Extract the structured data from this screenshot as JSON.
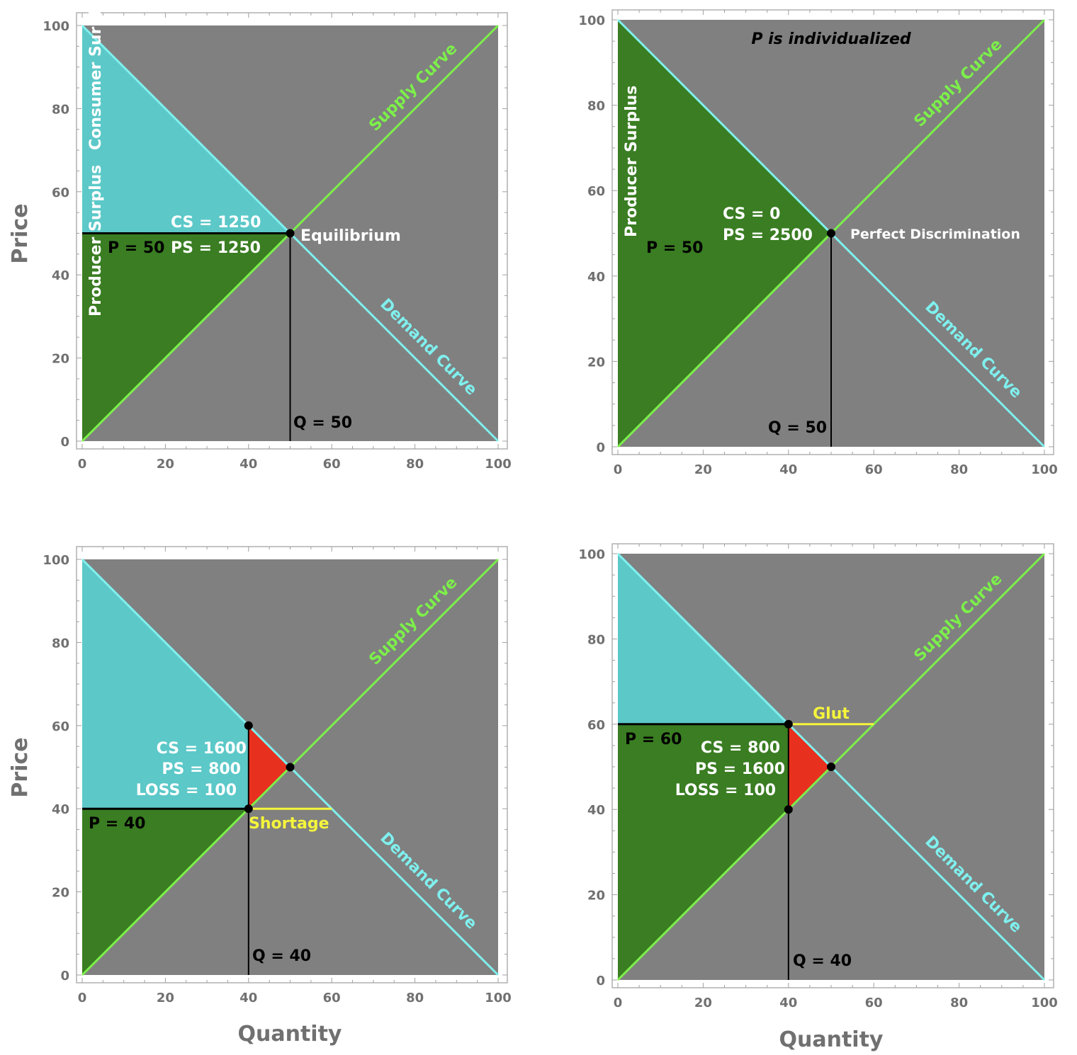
{
  "colors": {
    "background": "#808080",
    "demand": "#7ff0ee",
    "supply": "#7cf04a",
    "consumer_surplus": "#5cc8c8",
    "producer_surplus": "#3a7d22",
    "loss": "#e8301f",
    "gap": "#f5f53c",
    "text_black": "#000000",
    "text_white": "#ffffff",
    "axis_text": "#707070"
  },
  "axis_labels": {
    "y": "Price",
    "x": "Quantity"
  },
  "chart_data": [
    {
      "type": "area",
      "title": "",
      "xlim": [
        0,
        100
      ],
      "ylim": [
        0,
        100
      ],
      "xticks": [
        "0",
        "20",
        "40",
        "60",
        "80",
        "100"
      ],
      "yticks": [
        "0",
        "20",
        "40",
        "60",
        "80",
        "100"
      ],
      "demand": {
        "label": "Demand Curve",
        "points": [
          [
            0,
            100
          ],
          [
            100,
            0
          ]
        ]
      },
      "supply": {
        "label": "Supply Curve",
        "points": [
          [
            0,
            0
          ],
          [
            100,
            100
          ]
        ]
      },
      "regions": [
        {
          "kind": "consumer_surplus",
          "points": [
            [
              0,
              100
            ],
            [
              0,
              50
            ],
            [
              50,
              50
            ]
          ]
        },
        {
          "kind": "producer_surplus",
          "points": [
            [
              0,
              0
            ],
            [
              0,
              50
            ],
            [
              50,
              50
            ]
          ]
        }
      ],
      "price_line": {
        "y": 50,
        "x0": 0,
        "x1": 50
      },
      "quantity_line": {
        "x": 50,
        "y0": 0,
        "y1": 50
      },
      "points": [
        [
          50,
          50
        ]
      ],
      "labels": {
        "cs_region": "Consumer Surplus",
        "ps_region": "Producer Surplus",
        "price": "P = 50",
        "quantity": "Q = 50",
        "stats": [
          "CS = 1250",
          "PS = 1250"
        ],
        "point": "Equilibrium"
      }
    },
    {
      "type": "area",
      "title": "P is individualized",
      "xlim": [
        0,
        100
      ],
      "ylim": [
        0,
        100
      ],
      "xticks": [
        "0",
        "20",
        "40",
        "60",
        "80",
        "100"
      ],
      "yticks": [
        "0",
        "20",
        "40",
        "60",
        "80",
        "100"
      ],
      "demand": {
        "label": "Demand Curve",
        "points": [
          [
            0,
            100
          ],
          [
            100,
            0
          ]
        ]
      },
      "supply": {
        "label": "Supply Curve",
        "points": [
          [
            0,
            0
          ],
          [
            100,
            100
          ]
        ]
      },
      "regions": [
        {
          "kind": "producer_surplus",
          "points": [
            [
              0,
              0
            ],
            [
              0,
              100
            ],
            [
              50,
              50
            ]
          ]
        }
      ],
      "quantity_line": {
        "x": 50,
        "y0": 0,
        "y1": 50
      },
      "points": [
        [
          50,
          50
        ]
      ],
      "labels": {
        "ps_region": "Producer Surplus",
        "price": "P = 50",
        "quantity": "Q = 50",
        "stats": [
          "CS = 0",
          "PS = 2500"
        ],
        "point": "Perfect Discrimination"
      }
    },
    {
      "type": "area",
      "title": "",
      "xlim": [
        0,
        100
      ],
      "ylim": [
        0,
        100
      ],
      "xticks": [
        "0",
        "20",
        "40",
        "60",
        "80",
        "100"
      ],
      "yticks": [
        "0",
        "20",
        "40",
        "60",
        "80",
        "100"
      ],
      "demand": {
        "label": "Demand Curve",
        "points": [
          [
            0,
            100
          ],
          [
            100,
            0
          ]
        ]
      },
      "supply": {
        "label": "Supply Curve",
        "points": [
          [
            0,
            0
          ],
          [
            100,
            100
          ]
        ]
      },
      "regions": [
        {
          "kind": "consumer_surplus",
          "points": [
            [
              0,
              100
            ],
            [
              0,
              40
            ],
            [
              40,
              40
            ],
            [
              40,
              60
            ]
          ]
        },
        {
          "kind": "producer_surplus",
          "points": [
            [
              0,
              0
            ],
            [
              0,
              40
            ],
            [
              40,
              40
            ]
          ]
        },
        {
          "kind": "loss",
          "points": [
            [
              40,
              60
            ],
            [
              40,
              40
            ],
            [
              50,
              50
            ]
          ]
        }
      ],
      "price_line": {
        "y": 40,
        "x0": 0,
        "x1": 40
      },
      "quantity_line": {
        "x": 40,
        "y0": 0,
        "y1": 60
      },
      "gap_line": {
        "y": 40,
        "x0": 40,
        "x1": 60
      },
      "points": [
        [
          40,
          60
        ],
        [
          40,
          40
        ],
        [
          50,
          50
        ]
      ],
      "labels": {
        "price": "P = 40",
        "quantity": "Q = 40",
        "stats": [
          "CS = 1600",
          "PS = 800",
          "LOSS = 100"
        ],
        "gap": "Shortage"
      }
    },
    {
      "type": "area",
      "title": "",
      "xlim": [
        0,
        100
      ],
      "ylim": [
        0,
        100
      ],
      "xticks": [
        "0",
        "20",
        "40",
        "60",
        "80",
        "100"
      ],
      "yticks": [
        "0",
        "20",
        "40",
        "60",
        "80",
        "100"
      ],
      "demand": {
        "label": "Demand Curve",
        "points": [
          [
            0,
            100
          ],
          [
            100,
            0
          ]
        ]
      },
      "supply": {
        "label": "Supply Curve",
        "points": [
          [
            0,
            0
          ],
          [
            100,
            100
          ]
        ]
      },
      "regions": [
        {
          "kind": "consumer_surplus",
          "points": [
            [
              0,
              100
            ],
            [
              0,
              60
            ],
            [
              40,
              60
            ]
          ]
        },
        {
          "kind": "producer_surplus",
          "points": [
            [
              0,
              0
            ],
            [
              0,
              60
            ],
            [
              40,
              60
            ],
            [
              40,
              40
            ]
          ]
        },
        {
          "kind": "loss",
          "points": [
            [
              40,
              60
            ],
            [
              40,
              40
            ],
            [
              50,
              50
            ]
          ]
        }
      ],
      "price_line": {
        "y": 60,
        "x0": 0,
        "x1": 40
      },
      "quantity_line": {
        "x": 40,
        "y0": 0,
        "y1": 60
      },
      "gap_line": {
        "y": 60,
        "x0": 40,
        "x1": 60
      },
      "points": [
        [
          40,
          60
        ],
        [
          40,
          40
        ],
        [
          50,
          50
        ]
      ],
      "labels": {
        "price": "P = 60",
        "quantity": "Q = 40",
        "stats": [
          "CS = 800",
          "PS = 1600",
          "LOSS = 100"
        ],
        "gap": "Glut"
      }
    }
  ]
}
